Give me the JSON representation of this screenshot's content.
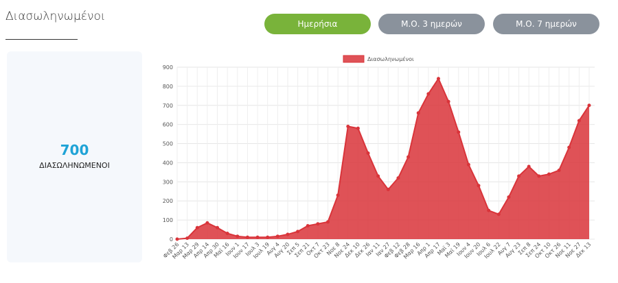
{
  "header": {
    "title": "Διασωληνωμένοι"
  },
  "buttons": [
    {
      "label": "Ημερήσια",
      "active": true
    },
    {
      "label": "Μ.Ο. 3 ημερών",
      "active": false
    },
    {
      "label": "Μ.Ο. 7 ημερών",
      "active": false
    }
  ],
  "card": {
    "value": 700,
    "label": "ΔΙΑΣΩΛΗΝΩΜΕΝΟΙ"
  },
  "chart_data": {
    "type": "area",
    "categories": [
      "Φεβ 26",
      "Μαρ 13",
      "Μαρ 29",
      "Απρ 14",
      "Απρ 30",
      "Μαϊ 16",
      "Ιουν 1",
      "Ιουν 17",
      "Ιουλ 3",
      "Ιουλ 19",
      "Αυγ 4",
      "Αυγ 20",
      "Σεπ 5",
      "Σεπ 21",
      "Οκτ 7",
      "Οκτ 23",
      "Νοε 8",
      "Νοε 24",
      "Δεκ 10",
      "Δεκ 26",
      "Ιαν 11",
      "Ιαν 27",
      "Φεβ 12",
      "Φεβ 28",
      "Μαρ 16",
      "Απρ 1",
      "Απρ 17",
      "Μαϊ 3",
      "Μαϊ 19",
      "Ιουν 4",
      "Ιουν 20",
      "Ιουλ 6",
      "Ιουλ 22",
      "Αυγ 7",
      "Αυγ 23",
      "Σεπ 8",
      "Σεπ 24",
      "Οκτ 10",
      "Οκτ 26",
      "Νοε 11",
      "Νοε 27",
      "Δεκ 13"
    ],
    "series": [
      {
        "name": "Διασωληνωμένοι",
        "color": "#d9343a",
        "values": [
          0,
          5,
          60,
          85,
          60,
          30,
          15,
          10,
          10,
          10,
          15,
          25,
          40,
          70,
          80,
          90,
          230,
          590,
          580,
          450,
          330,
          260,
          320,
          430,
          660,
          760,
          840,
          720,
          560,
          390,
          280,
          150,
          130,
          220,
          330,
          380,
          330,
          340,
          360,
          480,
          620,
          700
        ]
      }
    ],
    "ylim": [
      0,
      900
    ],
    "yticks": [
      0,
      100,
      200,
      300,
      400,
      500,
      600,
      700,
      800,
      900
    ],
    "grid": true,
    "legend": "top"
  }
}
